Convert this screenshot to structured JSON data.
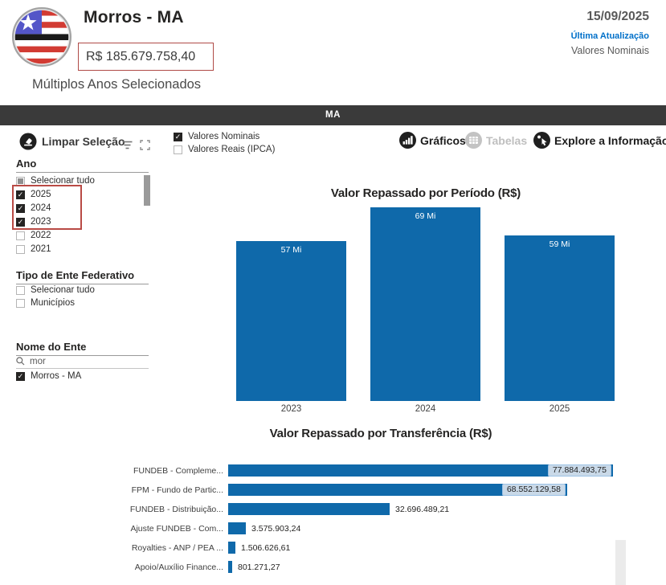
{
  "header": {
    "title": "Morros - MA",
    "total_value": "R$ 185.679.758,40",
    "subtitle": "Múltiplos Anos Selecionados",
    "date": "15/09/2025",
    "last_update_label": "Última Atualização",
    "values_mode_label": "Valores Nominais",
    "logo": "maranhao-flag-icon"
  },
  "state_bar": {
    "label": "MA"
  },
  "toolbar": {
    "clear_selection_label": "Limpar Seleção",
    "value_modes": [
      {
        "label": "Valores Nominais",
        "checked": true
      },
      {
        "label": "Valores Reais (IPCA)",
        "checked": false
      }
    ],
    "nav": [
      {
        "label": "Gráficos",
        "icon": "bar-chart-icon",
        "enabled": true
      },
      {
        "label": "Tabelas",
        "icon": "table-icon",
        "enabled": false
      },
      {
        "label": "Explore a Informação",
        "icon": "explore-hand-icon",
        "enabled": true
      }
    ]
  },
  "filters": {
    "ano": {
      "title": "Ano",
      "partial_next_row": true,
      "options": [
        {
          "label": "Selecionar tudo",
          "state": "partial",
          "highlighted": false
        },
        {
          "label": "2025",
          "state": "checked",
          "highlighted": true
        },
        {
          "label": "2024",
          "state": "checked",
          "highlighted": true
        },
        {
          "label": "2023",
          "state": "checked",
          "highlighted": true
        },
        {
          "label": "2022",
          "state": "unchecked",
          "highlighted": false
        },
        {
          "label": "2021",
          "state": "unchecked",
          "highlighted": false
        }
      ]
    },
    "tipo_ente": {
      "title": "Tipo de Ente Federativo",
      "options": [
        {
          "label": "Selecionar tudo",
          "state": "unchecked"
        },
        {
          "label": "Municípios",
          "state": "unchecked"
        }
      ]
    },
    "nome_ente": {
      "title": "Nome do Ente",
      "search_value": "mor",
      "options": [
        {
          "label": "Morros - MA",
          "state": "checked"
        }
      ]
    }
  },
  "annotation_color": "#b94a45",
  "chart_data": [
    {
      "type": "bar",
      "title": "Valor Repassado por Período (R$)",
      "categories": [
        "2023",
        "2024",
        "2025"
      ],
      "values_mi": [
        57,
        69,
        59
      ],
      "bar_labels": [
        "57 Mi",
        "69 Mi",
        "59 Mi"
      ],
      "unit": "Mi",
      "ylim": [
        0,
        69
      ],
      "grid": false,
      "data_label_position": "inside-end",
      "bar_color": "#0f69aa"
    },
    {
      "type": "bar-horizontal",
      "title": "Valor Repassado por Transferência (R$)",
      "categories": [
        "FUNDEB - Compleme...",
        "FPM - Fundo de Partic...",
        "FUNDEB - Distribuição...",
        "Ajuste FUNDEB - Com...",
        "Royalties - ANP / PEA ...",
        "Apoio/Auxílio Finance..."
      ],
      "values": [
        77884493.75,
        68552129.58,
        32696489.21,
        3575903.24,
        1506626.61,
        801271.27
      ],
      "value_labels": [
        "77.884.493,75",
        "68.552.129,58",
        "32.696.489,21",
        "3.575.903,24",
        "1.506.626,61",
        "801.271,27"
      ],
      "label_style": [
        "boxed-inside",
        "boxed-inside",
        "outside",
        "outside",
        "outside",
        "outside"
      ],
      "xlim": [
        0,
        77884493.75
      ],
      "grid": false,
      "bar_color": "#0f69aa"
    }
  ]
}
